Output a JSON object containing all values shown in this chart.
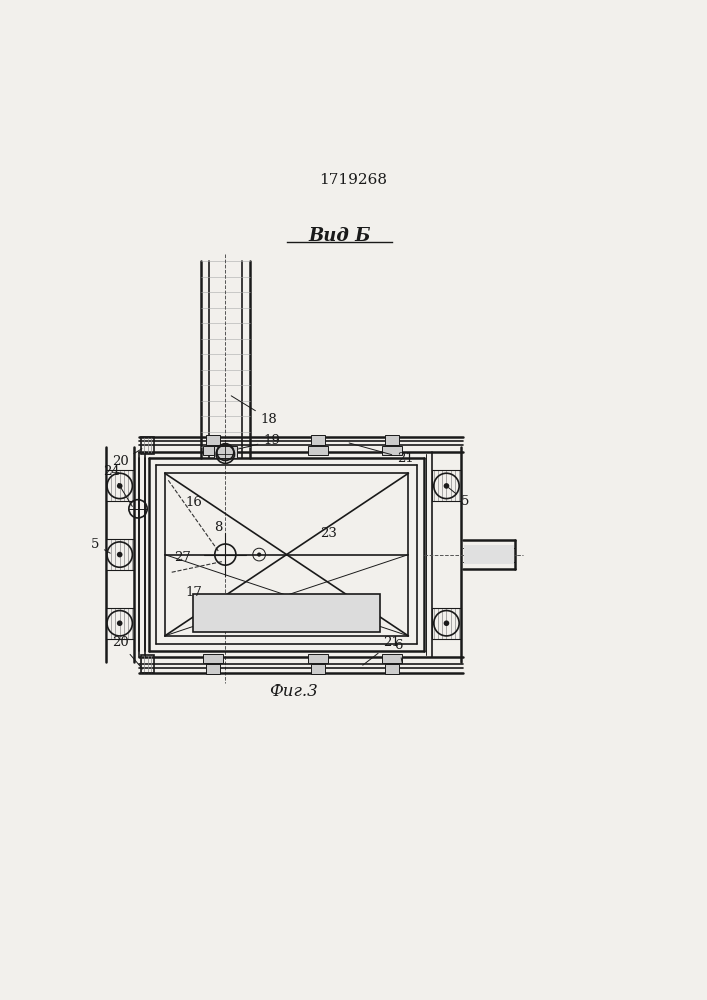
{
  "title": "1719268",
  "view_label": "Вид Б",
  "fig_label": "Фиг.3",
  "bg_color": "#f2f0ec",
  "line_color": "#1a1a1a",
  "lw_main": 1.2,
  "lw_thin": 0.7,
  "lw_thick": 1.8,
  "bx0": 0.21,
  "by0": 0.285,
  "bx1": 0.6,
  "by1": 0.56
}
